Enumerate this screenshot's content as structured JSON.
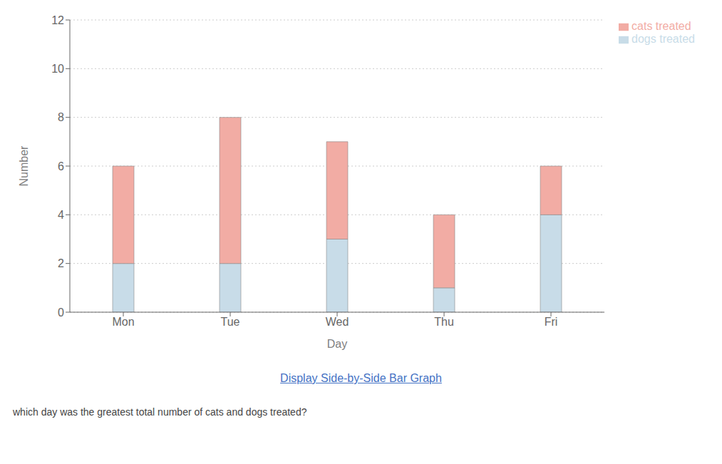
{
  "chart_data": {
    "type": "bar",
    "stacked": true,
    "categories": [
      "Mon",
      "Tue",
      "Wed",
      "Thu",
      "Fri"
    ],
    "series": [
      {
        "name": "dogs treated",
        "color": "#c8dce8",
        "values": [
          2,
          2,
          3,
          1,
          4
        ]
      },
      {
        "name": "cats treated",
        "color": "#f2aca4",
        "values": [
          4,
          6,
          4,
          3,
          2
        ]
      }
    ],
    "xlabel": "Day",
    "ylabel": "Number",
    "ylim": [
      0,
      12
    ],
    "yticks": [
      0,
      2,
      4,
      6,
      8,
      10,
      12
    ],
    "grid": true,
    "legend": "right",
    "annotations": [
      "Display Side-by-Side Bar Graph",
      "which day was the greatest total number of cats and dogs treated?"
    ]
  }
}
